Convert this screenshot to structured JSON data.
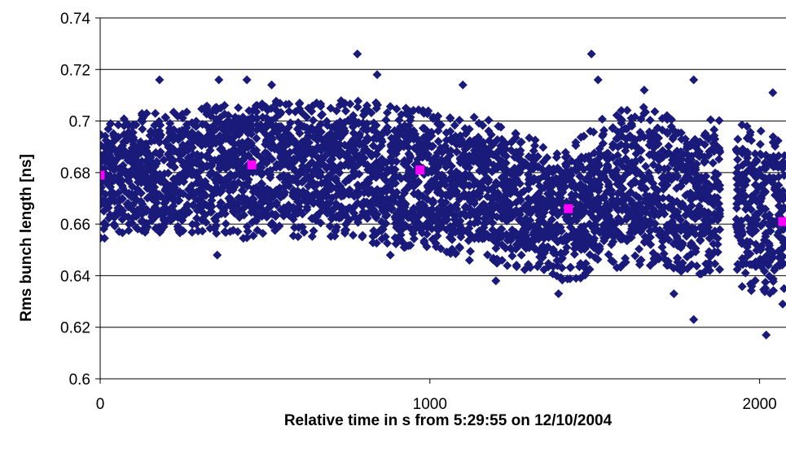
{
  "chart_data": {
    "type": "scatter",
    "title": "",
    "xlabel": "Relative time in s from 5:29:55 on 12/10/2004",
    "ylabel": "Rms bunch length [ns]",
    "xlim": [
      0,
      2080
    ],
    "ylim": [
      0.6,
      0.74
    ],
    "x_ticks": [
      0,
      1000,
      2000
    ],
    "x_tick_labels": [
      "0",
      "1000",
      "2000"
    ],
    "y_ticks": [
      0.6,
      0.62,
      0.64,
      0.66,
      0.68,
      0.7,
      0.72,
      0.74
    ],
    "y_tick_labels": [
      "0.6",
      "0.62",
      "0.64",
      "0.66",
      "0.68",
      "0.7",
      "0.72",
      "0.74"
    ],
    "grid": "horizontal major gridlines",
    "legend": "none",
    "colors": {
      "bunches": "#1a1a7a",
      "mean": "#ff00ff"
    },
    "series": [
      {
        "marker": "diamond",
        "color": "#1a1a7a",
        "description_note": "",
        "column_spacing_s": 14,
        "columns": [
          {
            "x": 0,
            "low": 0.654,
            "high": 0.7
          },
          {
            "x": 100,
            "low": 0.655,
            "high": 0.704
          },
          {
            "x": 175,
            "low": 0.656,
            "high": 0.705
          },
          {
            "x": 260,
            "low": 0.656,
            "high": 0.704
          },
          {
            "x": 350,
            "low": 0.656,
            "high": 0.707
          },
          {
            "x": 450,
            "low": 0.654,
            "high": 0.709
          },
          {
            "x": 550,
            "low": 0.655,
            "high": 0.708
          },
          {
            "x": 650,
            "low": 0.655,
            "high": 0.707
          },
          {
            "x": 750,
            "low": 0.655,
            "high": 0.709
          },
          {
            "x": 850,
            "low": 0.652,
            "high": 0.707
          },
          {
            "x": 950,
            "low": 0.65,
            "high": 0.705
          },
          {
            "x": 1050,
            "low": 0.648,
            "high": 0.704
          },
          {
            "x": 1150,
            "low": 0.645,
            "high": 0.702
          },
          {
            "x": 1250,
            "low": 0.643,
            "high": 0.697
          },
          {
            "x": 1350,
            "low": 0.641,
            "high": 0.691
          },
          {
            "x": 1400,
            "low": 0.638,
            "high": 0.69
          },
          {
            "x": 1450,
            "low": 0.638,
            "high": 0.693
          },
          {
            "x": 1500,
            "low": 0.64,
            "high": 0.699
          },
          {
            "x": 1560,
            "low": 0.643,
            "high": 0.704
          },
          {
            "x": 1650,
            "low": 0.644,
            "high": 0.706
          },
          {
            "x": 1750,
            "low": 0.642,
            "high": 0.704
          },
          {
            "x": 1850,
            "low": 0.64,
            "high": 0.701
          },
          {
            "x": 1900,
            "low": 0.64,
            "high": 0.7
          },
          {
            "x": 1950,
            "low": 0.635,
            "high": 0.699
          },
          {
            "x": 2000,
            "low": 0.633,
            "high": 0.697
          },
          {
            "x": 2050,
            "low": 0.632,
            "high": 0.696
          },
          {
            "x": 2080,
            "low": 0.632,
            "high": 0.696
          }
        ],
        "gaps": [
          [
            1880,
            1930
          ]
        ],
        "outliers": [
          {
            "x": 180,
            "y": 0.716
          },
          {
            "x": 360,
            "y": 0.716
          },
          {
            "x": 355,
            "y": 0.648
          },
          {
            "x": 445,
            "y": 0.716
          },
          {
            "x": 520,
            "y": 0.714
          },
          {
            "x": 780,
            "y": 0.726
          },
          {
            "x": 840,
            "y": 0.718
          },
          {
            "x": 880,
            "y": 0.648
          },
          {
            "x": 1100,
            "y": 0.714
          },
          {
            "x": 1120,
            "y": 0.646
          },
          {
            "x": 1200,
            "y": 0.638
          },
          {
            "x": 1390,
            "y": 0.633
          },
          {
            "x": 1490,
            "y": 0.726
          },
          {
            "x": 1510,
            "y": 0.716
          },
          {
            "x": 1650,
            "y": 0.712
          },
          {
            "x": 1740,
            "y": 0.633
          },
          {
            "x": 1800,
            "y": 0.716
          },
          {
            "x": 1800,
            "y": 0.623
          },
          {
            "x": 2020,
            "y": 0.617
          },
          {
            "x": 2040,
            "y": 0.711
          },
          {
            "x": 2070,
            "y": 0.629
          }
        ]
      },
      {
        "marker": "square",
        "color": "#ff00ff",
        "points": [
          {
            "x": 0,
            "y": 0.679
          },
          {
            "x": 460,
            "y": 0.683
          },
          {
            "x": 970,
            "y": 0.681
          },
          {
            "x": 1420,
            "y": 0.666
          },
          {
            "x": 2070,
            "y": 0.661
          }
        ]
      }
    ]
  }
}
